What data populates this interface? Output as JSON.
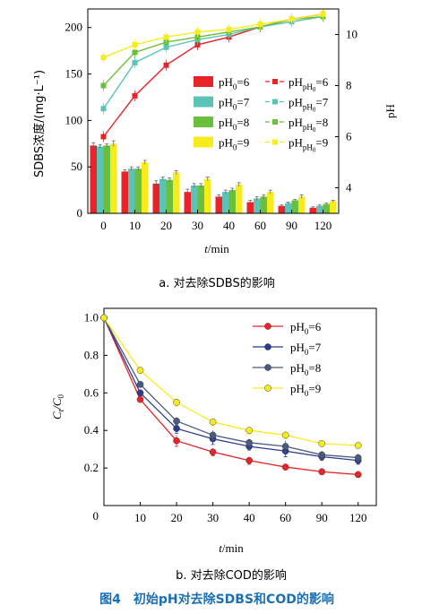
{
  "figure_caption": "图4　初始pH对去除SDBS和COD的影响",
  "chart_data": [
    {
      "type": "bar",
      "subcaption": "a. 对去除SDBS的影响",
      "categories": [
        "0",
        "10",
        "20",
        "30",
        "40",
        "60",
        "90",
        "120"
      ],
      "xlabel_italic": "t",
      "xlabel_unit": "/min",
      "ylabel": "SDBS浓度/(mg·L⁻¹)",
      "y2label": "pH",
      "ylim": [
        0,
        220
      ],
      "y2lim": [
        3,
        11
      ],
      "yticks": [
        "0",
        "50",
        "100",
        "150",
        "200"
      ],
      "y2ticks": [
        "4",
        "6",
        "8",
        "10"
      ],
      "legend_position": "center-right",
      "series": [
        {
          "name": "pH0=6",
          "label_main": "pH",
          "label_sub": "0",
          "label_tail": "=6",
          "color": "#e8232a",
          "values": [
            73,
            45,
            32,
            23,
            18,
            12,
            8,
            6
          ]
        },
        {
          "name": "pH0=7",
          "label_main": "pH",
          "label_sub": "0",
          "label_tail": "=7",
          "color": "#5bc4b6",
          "values": [
            72,
            48,
            37,
            30,
            23,
            16,
            11,
            8
          ]
        },
        {
          "name": "pH0=8",
          "label_main": "pH",
          "label_sub": "0",
          "label_tail": "=8",
          "color": "#6bbf3e",
          "values": [
            73,
            48,
            36,
            30,
            25,
            18,
            14,
            10
          ]
        },
        {
          "name": "pH0=9",
          "label_main": "pH",
          "label_sub": "0",
          "label_tail": "=9",
          "color": "#f6ec1d",
          "values": [
            75,
            55,
            44,
            37,
            31,
            23,
            18,
            13
          ]
        }
      ],
      "errors": [
        [
          3,
          2,
          3,
          3,
          2,
          2,
          1,
          1
        ],
        [
          2,
          2,
          2,
          2,
          2,
          2,
          1,
          1
        ],
        [
          2,
          2,
          2,
          2,
          2,
          2,
          1,
          1
        ],
        [
          3,
          2,
          2,
          2,
          2,
          2,
          2,
          1
        ]
      ],
      "ph_series": [
        {
          "name": "pHpH0=6",
          "label_main": "pH",
          "label_sub": "pH",
          "label_subsub": "0",
          "label_tail": "=6",
          "color": "#e8232a",
          "values": [
            6.0,
            7.6,
            8.8,
            9.6,
            9.9,
            10.3,
            10.6,
            10.8
          ]
        },
        {
          "name": "pHpH0=7",
          "label_main": "pH",
          "label_sub": "pH",
          "label_subsub": "0",
          "label_tail": "=7",
          "color": "#5bc4b6",
          "values": [
            7.1,
            8.9,
            9.5,
            9.8,
            10.0,
            10.3,
            10.5,
            10.7
          ]
        },
        {
          "name": "pHpH0=8",
          "label_main": "pH",
          "label_sub": "pH",
          "label_subsub": "0",
          "label_tail": "=8",
          "color": "#6bbf3e",
          "values": [
            8.0,
            9.3,
            9.7,
            9.9,
            10.1,
            10.3,
            10.6,
            10.7
          ]
        },
        {
          "name": "pHpH0=9",
          "label_main": "pH",
          "label_sub": "pH",
          "label_subsub": "0",
          "label_tail": "=9",
          "color": "#f6ec1d",
          "values": [
            9.1,
            9.6,
            9.9,
            10.1,
            10.2,
            10.4,
            10.6,
            10.8
          ]
        }
      ]
    },
    {
      "type": "line",
      "subcaption": "b. 对去除COD的影响",
      "x": [
        "0",
        "10",
        "20",
        "30",
        "40",
        "60",
        "90",
        "120"
      ],
      "xticks": [
        "0",
        "10",
        "20",
        "30",
        "40",
        "60",
        "90",
        "120"
      ],
      "xlabel_italic": "t",
      "xlabel_unit": "/min",
      "ylabel_main": "C",
      "ylabel_sub1": "t",
      "ylabel_mid": "/C",
      "ylabel_sub2": "0",
      "ylim": [
        0,
        1.05
      ],
      "yticks": [
        "0.2",
        "0.4",
        "0.6",
        "0.8",
        "1.0"
      ],
      "origin_label": "0",
      "legend_position": "top-right",
      "series": [
        {
          "name": "pH0=6",
          "label_main": "pH",
          "label_sub": "0",
          "label_tail": "=6",
          "color": "#e8232a",
          "values": [
            1.0,
            0.565,
            0.345,
            0.285,
            0.24,
            0.205,
            0.18,
            0.165
          ]
        },
        {
          "name": "pH0=7",
          "label_main": "pH",
          "label_sub": "0",
          "label_tail": "=7",
          "color": "#2a3b8f",
          "values": [
            1.0,
            0.6,
            0.41,
            0.355,
            0.315,
            0.29,
            0.26,
            0.24
          ]
        },
        {
          "name": "pH0=8",
          "label_main": "pH",
          "label_sub": "0",
          "label_tail": "=8",
          "color": "#4a5b7e",
          "values": [
            1.0,
            0.645,
            0.45,
            0.375,
            0.335,
            0.315,
            0.27,
            0.255
          ]
        },
        {
          "name": "pH0=9",
          "label_main": "pH",
          "label_sub": "0",
          "label_tail": "=9",
          "color": "#f6ec1d",
          "values": [
            1.0,
            0.72,
            0.55,
            0.445,
            0.4,
            0.375,
            0.33,
            0.32
          ]
        }
      ],
      "errors": [
        [
          0,
          0.015,
          0.03,
          0.02,
          0.02,
          0.015,
          0.015,
          0.015
        ],
        [
          0,
          0.015,
          0.025,
          0.03,
          0.02,
          0.03,
          0.02,
          0.02
        ],
        [
          0,
          0.015,
          0.02,
          0.025,
          0.02,
          0.03,
          0.02,
          0.02
        ],
        [
          0,
          0.015,
          0.02,
          0.02,
          0.02,
          0.02,
          0.015,
          0.015
        ]
      ]
    }
  ]
}
